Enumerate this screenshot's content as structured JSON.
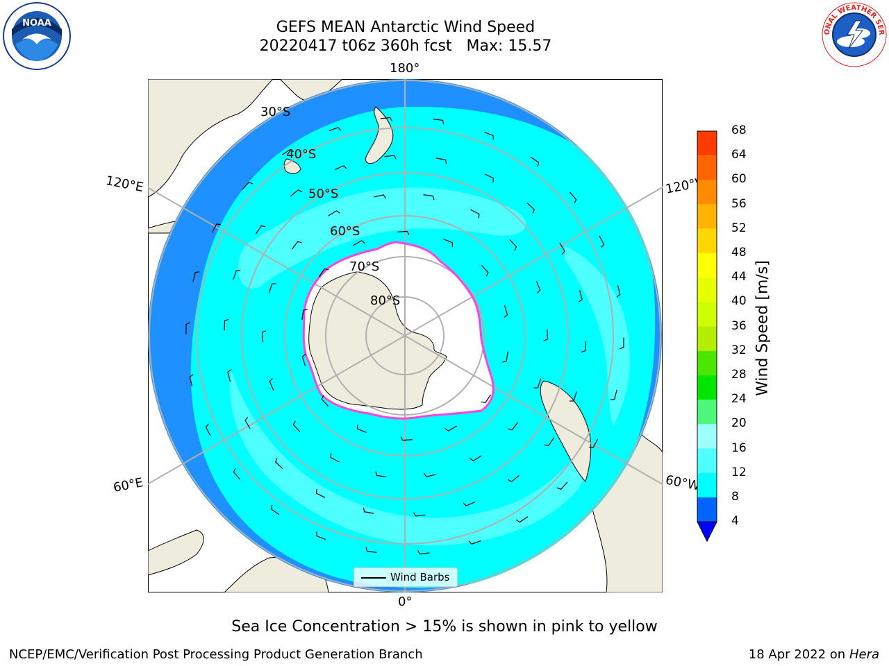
{
  "header": {
    "title_line1": "GEFS MEAN Antarctic Wind Speed",
    "title_line2": "20220417 t06z 360h fcst   Max: 15.57"
  },
  "map": {
    "projection": "south-polar-stereographic",
    "longitude_labels": {
      "top": "180°",
      "bottom": "0°",
      "upper_left": "120°E",
      "upper_right": "120°W",
      "lower_left": "60°E",
      "lower_right": "60°W"
    },
    "latitude_labels": [
      "30°S",
      "40°S",
      "50°S",
      "60°S",
      "70°S",
      "80°S"
    ],
    "legend_label": "Wind Barbs",
    "colors": {
      "ocean_dark": "#1e90ff",
      "ocean_mid": "#00ffff",
      "ocean_light": "#4dffff",
      "land": "#eeecdc",
      "ice_edge_pink": "#ff44dd",
      "ice_edge_yellow": "#ffdd44",
      "grid": "#b0b0b0"
    }
  },
  "colorbar": {
    "label": "Wind Speed [m/s]",
    "ticks": [
      "4",
      "8",
      "12",
      "16",
      "20",
      "24",
      "28",
      "32",
      "36",
      "40",
      "44",
      "48",
      "52",
      "56",
      "60",
      "64",
      "68"
    ],
    "colors": [
      "#0064ff",
      "#00ffff",
      "#4dffff",
      "#9dffff",
      "#4cf77c",
      "#00e600",
      "#4ce600",
      "#b3ed00",
      "#ccff00",
      "#e6ff00",
      "#ffff00",
      "#ffd700",
      "#ffb300",
      "#ff8c00",
      "#ff6400",
      "#ff3c00"
    ],
    "extend_color": "#0000ff"
  },
  "caption": "Sea Ice Concentration > 15% is shown in pink to yellow",
  "footer": {
    "left": "NCEP/EMC/Verification Post Processing Product Generation Branch",
    "right_prefix": "18 Apr 2022 on ",
    "right_machine": "Hera"
  },
  "logos": {
    "noaa_text": "NOAA",
    "nws_text": "NATIONAL WEATHER SERVICE"
  }
}
